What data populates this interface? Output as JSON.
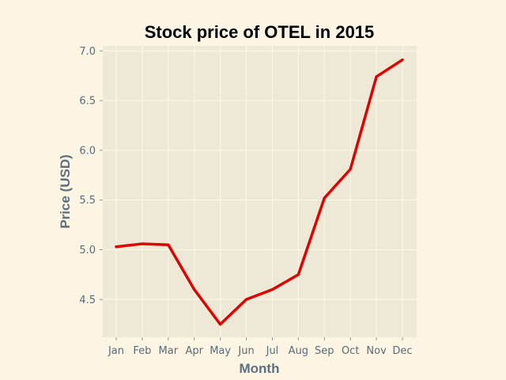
{
  "chart_data": {
    "type": "line",
    "title": "Stock price of OTEL in 2015",
    "xlabel": "Month",
    "ylabel": "Price (USD)",
    "categories": [
      "Jan",
      "Feb",
      "Mar",
      "Apr",
      "May",
      "Jun",
      "Jul",
      "Aug",
      "Sep",
      "Oct",
      "Nov",
      "Dec"
    ],
    "series": [
      {
        "values": [
          5.03,
          5.06,
          5.05,
          4.6,
          4.25,
          4.5,
          4.6,
          4.75,
          5.52,
          5.81,
          6.74,
          6.91
        ]
      }
    ],
    "ylim": [
      4.12,
      7.05
    ],
    "yticks": [
      4.5,
      5.0,
      5.5,
      6.0,
      6.5,
      7.0
    ],
    "ytick_labels": [
      "4.5",
      "5.0",
      "5.5",
      "6.0",
      "6.5",
      "7.0"
    ],
    "grid": true,
    "legend": "none",
    "colors": {
      "line": "#e00000",
      "plot_background": "#eee8d6",
      "figure_background": "#fcf5e4",
      "grid": "#fcf5e4",
      "label": "#5c7080"
    }
  }
}
